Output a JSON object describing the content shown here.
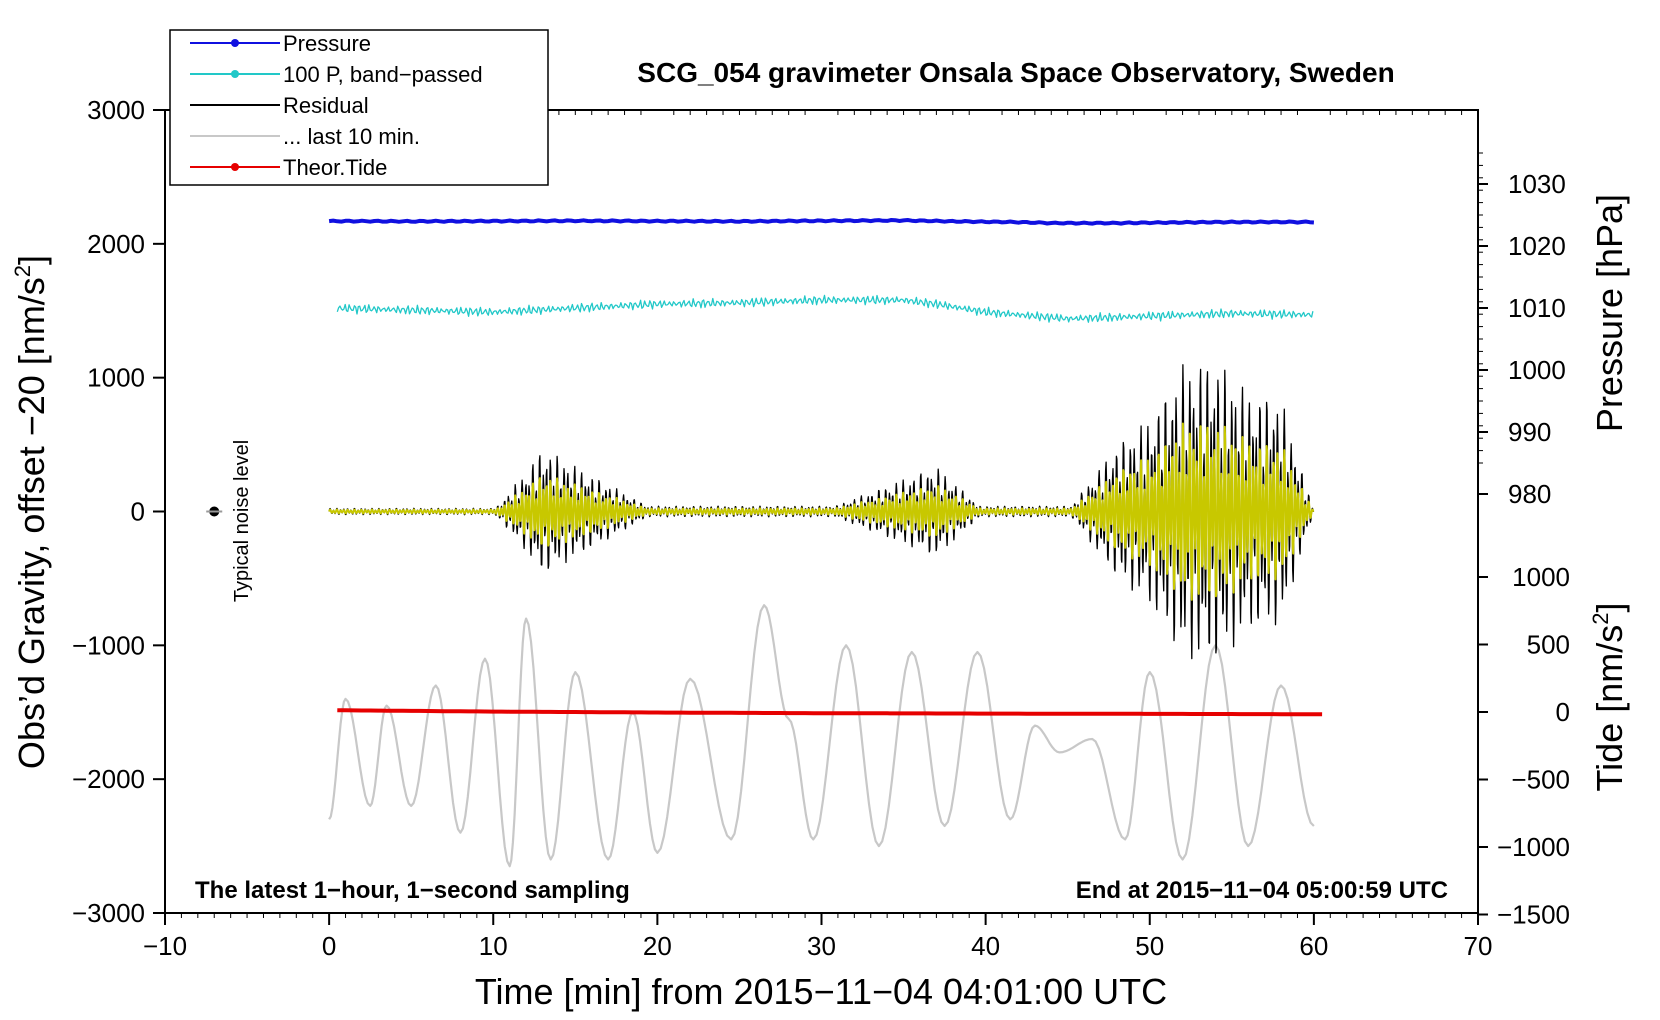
{
  "chart_data": {
    "type": "line",
    "title": "SCG_054 gravimeter Onsala Space Observatory, Sweden",
    "xlabel": "Time [min] from 2015−11−04 04:01:00 UTC",
    "ylabel_left": "Obs’d Gravity, offset −20 [nm/s",
    "ylabel_left_sup": "2",
    "ylabel_left_end": "]",
    "ylabel_right_pressure": "Pressure [hPa]",
    "ylabel_right_tide": "Tide [nm/s",
    "ylabel_right_tide_sup": "2",
    "ylabel_right_tide_end": "]",
    "xlim": [
      -10,
      70
    ],
    "ylim_left": [
      -3000,
      3000
    ],
    "pressure_ticks": [
      {
        "value": 1030,
        "label": "1030"
      },
      {
        "value": 1020,
        "label": "1020"
      },
      {
        "value": 1010,
        "label": "1010"
      },
      {
        "value": 1000,
        "label": "1000"
      },
      {
        "value": 990,
        "label": "990"
      },
      {
        "value": 980,
        "label": "980"
      }
    ],
    "tide_ticks": [
      {
        "value": 1000,
        "label": "1000"
      },
      {
        "value": 500,
        "label": "500"
      },
      {
        "value": 0,
        "label": "0"
      },
      {
        "value": -500,
        "label": "−500"
      },
      {
        "value": -1000,
        "label": "−1000"
      },
      {
        "value": -1500,
        "label": "−1500"
      }
    ],
    "x_ticks": [
      {
        "value": -10,
        "label": "−10"
      },
      {
        "value": 0,
        "label": "0"
      },
      {
        "value": 10,
        "label": "10"
      },
      {
        "value": 20,
        "label": "20"
      },
      {
        "value": 30,
        "label": "30"
      },
      {
        "value": 40,
        "label": "40"
      },
      {
        "value": 50,
        "label": "50"
      },
      {
        "value": 60,
        "label": "60"
      },
      {
        "value": 70,
        "label": "70"
      }
    ],
    "y_ticks": [
      {
        "value": 3000,
        "label": "3000"
      },
      {
        "value": 2000,
        "label": "2000"
      },
      {
        "value": 1000,
        "label": "1000"
      },
      {
        "value": 0,
        "label": "0"
      },
      {
        "value": -1000,
        "label": "−1000"
      },
      {
        "value": -2000,
        "label": "−2000"
      },
      {
        "value": -3000,
        "label": "−3000"
      }
    ],
    "annotation_left": "The latest 1−hour, 1−second sampling",
    "annotation_right": "End at 2015−11−04 05:00:59 UTC",
    "noise_label": "Typical noise level",
    "noise_point": {
      "x": -7,
      "y": 0
    },
    "legend": [
      {
        "label": "Pressure",
        "color": "#1010e0",
        "marker": true
      },
      {
        "label": "100 P, band−passed",
        "color": "#22c8c8",
        "marker": true
      },
      {
        "label": "Residual",
        "color": "#000000",
        "marker": false
      },
      {
        "label": "... last 10 min.",
        "color": "#c8c8c8",
        "marker": false
      },
      {
        "label": "Theor.Tide",
        "color": "#e60000",
        "marker": true
      }
    ],
    "series": [
      {
        "name": "Pressure",
        "color": "#1010e0",
        "x": [
          0,
          5,
          10,
          15,
          20,
          25,
          30,
          35,
          38,
          42,
          44,
          48,
          50,
          55,
          60
        ],
        "y": [
          2170,
          2168,
          2170,
          2172,
          2170,
          2168,
          2172,
          2175,
          2168,
          2162,
          2155,
          2155,
          2158,
          2163,
          2163
        ]
      },
      {
        "name": "100 P, band-passed",
        "color": "#22c8c8",
        "x": [
          0,
          5,
          10,
          15,
          20,
          25,
          30,
          35,
          37,
          40,
          45,
          50,
          55,
          60
        ],
        "y": [
          1520,
          1505,
          1490,
          1520,
          1550,
          1560,
          1580,
          1580,
          1550,
          1490,
          1440,
          1460,
          1480,
          1470
        ]
      },
      {
        "name": "Residual",
        "color": "#000000",
        "x": [
          0,
          10,
          12,
          13,
          20,
          30,
          37,
          40,
          45,
          48,
          50,
          52,
          54,
          56,
          58,
          60
        ],
        "y": [
          0,
          0,
          300,
          480,
          0,
          0,
          340,
          0,
          0,
          500,
          700,
          1100,
          1150,
          900,
          850,
          0
        ]
      },
      {
        "name": "... last 10 min.",
        "color": "#c8c8c8",
        "x": [
          0,
          1,
          2.5,
          3.5,
          5,
          6.5,
          8,
          9.5,
          11,
          12,
          13.5,
          15,
          17,
          18.5,
          20,
          22,
          24.5,
          26.5,
          28,
          29.5,
          31.5,
          33.5,
          35.5,
          37.5,
          39.5,
          41.5,
          43,
          44.5,
          46.5,
          48.5,
          50,
          52,
          54,
          56,
          58,
          60
        ],
        "y": [
          -2300,
          -1400,
          -2200,
          -1450,
          -2200,
          -1300,
          -2400,
          -1100,
          -2650,
          -800,
          -2600,
          -1200,
          -2600,
          -1500,
          -2550,
          -1250,
          -2450,
          -700,
          -1550,
          -2450,
          -1000,
          -2500,
          -1050,
          -2350,
          -1050,
          -2300,
          -1600,
          -1800,
          -1700,
          -2450,
          -1200,
          -2600,
          -1000,
          -2500,
          -1300,
          -2350
        ]
      },
      {
        "name": "Theor.Tide",
        "color": "#e60000",
        "x": [
          0.5,
          10,
          20,
          30,
          40,
          50,
          60.5
        ],
        "y": [
          -1485,
          -1495,
          -1502,
          -1507,
          -1510,
          -1512,
          -1515
        ]
      }
    ]
  }
}
